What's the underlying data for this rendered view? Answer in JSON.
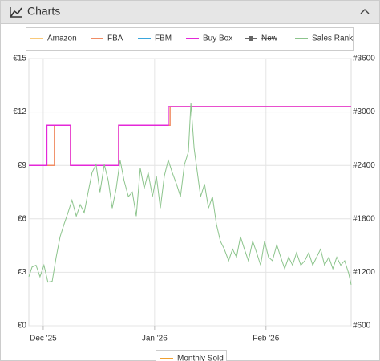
{
  "header": {
    "title": "Charts"
  },
  "chart_data": {
    "type": "line",
    "series": [
      {
        "name": "Amazon",
        "color": "#f9c97a",
        "x": [],
        "values": []
      },
      {
        "name": "FBA",
        "color": "#f08c64",
        "x": [
          -4,
          3.1,
          3.1,
          7.6,
          7.6,
          21.0,
          21.0,
          35.3,
          35.3,
          85.7
        ],
        "values": [
          9,
          9,
          11.25,
          11.25,
          9,
          9,
          11.25,
          11.25,
          12.3,
          12.3
        ]
      },
      {
        "name": "FBM",
        "color": "#3aa6dd",
        "x": [],
        "values": []
      },
      {
        "name": "Buy Box",
        "color": "#e428d8",
        "x": [
          -4,
          1.0,
          1.0,
          7.6,
          7.6,
          21.0,
          21.0,
          34.8,
          34.8,
          85.7
        ],
        "values": [
          9,
          9,
          11.25,
          11.25,
          9,
          9,
          11.25,
          11.25,
          12.3,
          12.3
        ]
      },
      {
        "name": "New",
        "color": "#666666",
        "hidden": true,
        "x": [],
        "values": []
      },
      {
        "name": "Sales Rank",
        "color": "#8cc48c",
        "axis": "y2",
        "x": [
          -4.0,
          -3.1,
          -2.0,
          -0.9,
          0.2,
          1.3,
          2.5,
          3.6,
          4.7,
          5.8,
          6.9,
          8.0,
          9.2,
          10.3,
          11.4,
          12.5,
          13.6,
          14.7,
          15.8,
          17.0,
          18.1,
          19.2,
          20.3,
          21.4,
          22.5,
          23.7,
          24.8,
          25.9,
          27.0,
          28.1,
          29.2,
          30.4,
          31.5,
          32.6,
          33.7,
          34.8,
          35.9,
          37.1,
          38.2,
          39.3,
          40.4,
          41.1,
          42.0,
          42.9,
          43.8,
          44.9,
          46.0,
          47.1,
          48.2,
          49.3,
          50.4,
          51.6,
          52.7,
          53.8,
          54.9,
          56.0,
          57.1,
          58.3,
          59.4,
          60.5,
          61.6,
          62.7,
          63.8,
          65.0,
          66.1,
          67.2,
          68.3,
          69.4,
          70.5,
          71.7,
          72.8,
          73.9,
          75.0,
          76.1,
          77.2,
          78.3,
          79.5,
          80.6,
          81.7,
          82.8,
          83.9,
          85.0,
          85.7
        ],
        "values": [
          1150,
          1260,
          1280,
          1150,
          1280,
          1090,
          1100,
          1370,
          1600,
          1740,
          1870,
          2010,
          1830,
          1960,
          1870,
          2100,
          2320,
          2410,
          2100,
          2410,
          2230,
          1920,
          2140,
          2460,
          2230,
          2050,
          2100,
          1830,
          2370,
          2140,
          2320,
          2050,
          2280,
          1920,
          2280,
          2460,
          2320,
          2190,
          2050,
          2410,
          2550,
          3100,
          2590,
          2320,
          2050,
          2190,
          1920,
          2050,
          1740,
          1550,
          1460,
          1330,
          1460,
          1370,
          1600,
          1460,
          1330,
          1550,
          1420,
          1280,
          1550,
          1370,
          1330,
          1510,
          1370,
          1240,
          1370,
          1280,
          1420,
          1280,
          1330,
          1420,
          1280,
          1370,
          1460,
          1280,
          1370,
          1240,
          1370,
          1280,
          1330,
          1190,
          1060
        ]
      }
    ],
    "xlim": [
      -4,
      85.7
    ],
    "xticks": [
      {
        "value": 0,
        "label": "Dec '25"
      },
      {
        "value": 31,
        "label": "Jan '26"
      },
      {
        "value": 62,
        "label": "Feb '26"
      }
    ],
    "ylim": [
      0,
      15
    ],
    "yticks": [
      {
        "value": 0,
        "label": "€0"
      },
      {
        "value": 3,
        "label": "€3"
      },
      {
        "value": 6,
        "label": "€6"
      },
      {
        "value": 9,
        "label": "€9"
      },
      {
        "value": 12,
        "label": "€12"
      },
      {
        "value": 15,
        "label": "€15"
      }
    ],
    "y2lim": [
      600,
      3600
    ],
    "y2ticks": [
      {
        "value": 600,
        "label": "#600"
      },
      {
        "value": 1200,
        "label": "#1200"
      },
      {
        "value": 1800,
        "label": "#1800"
      },
      {
        "value": 2400,
        "label": "#2400"
      },
      {
        "value": 3000,
        "label": "#3000"
      },
      {
        "value": 3600,
        "label": "#3600"
      }
    ],
    "grid": true,
    "legend": "top"
  },
  "next_chart": {
    "legend_name": "Monthly Sold",
    "legend_color": "#f0a030"
  }
}
